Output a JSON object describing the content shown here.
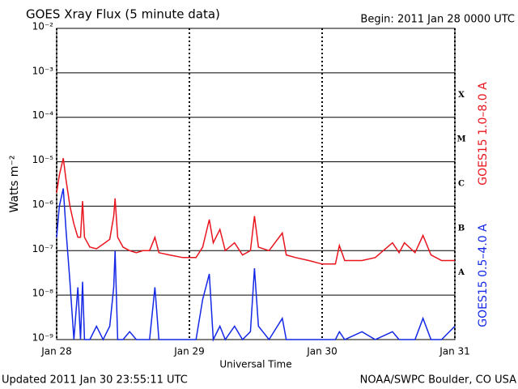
{
  "chart_data": {
    "type": "line",
    "title": "GOES Xray Flux (5 minute data)",
    "subtitle": "Begin:  2011 Jan 28 0000 UTC",
    "x_label": "Universal Time",
    "y_label": "Watts m⁻²",
    "footer_left": "Updated 2011 Jan 30 23:55:11 UTC",
    "footer_right": "NOAA/SWPC Boulder, CO USA",
    "flare_classes": [
      "A",
      "B",
      "C",
      "M",
      "X"
    ],
    "ylog": true,
    "grid": true,
    "xlim": [
      0,
      3
    ],
    "xticks": [
      {
        "value": 0,
        "label": "Jan 28"
      },
      {
        "value": 1,
        "label": "Jan 29"
      },
      {
        "value": 2,
        "label": "Jan 30"
      },
      {
        "value": 3,
        "label": "Jan 31"
      }
    ],
    "ylim": [
      1e-09,
      0.01
    ],
    "yticks": [
      {
        "value": 1e-09,
        "label": "10⁻⁹"
      },
      {
        "value": 1e-08,
        "label": "10⁻⁸"
      },
      {
        "value": 1e-07,
        "label": "10⁻⁷"
      },
      {
        "value": 1e-06,
        "label": "10⁻⁶"
      },
      {
        "value": 1e-05,
        "label": "10⁻⁵"
      },
      {
        "value": 0.0001,
        "label": "10⁻⁴"
      },
      {
        "value": 0.001,
        "label": "10⁻³"
      },
      {
        "value": 0.01,
        "label": "10⁻²"
      }
    ],
    "x": [
      0,
      0.02,
      0.05,
      0.07,
      0.1,
      0.13,
      0.16,
      0.18,
      0.195,
      0.21,
      0.25,
      0.3,
      0.35,
      0.4,
      0.43,
      0.44,
      0.46,
      0.5,
      0.55,
      0.6,
      0.65,
      0.7,
      0.74,
      0.77,
      0.85,
      0.95,
      1.05,
      1.1,
      1.15,
      1.18,
      1.23,
      1.27,
      1.34,
      1.4,
      1.46,
      1.49,
      1.52,
      1.6,
      1.7,
      1.73,
      1.8,
      1.9,
      2.0,
      2.1,
      2.13,
      2.17,
      2.3,
      2.4,
      2.53,
      2.58,
      2.62,
      2.7,
      2.76,
      2.82,
      2.9,
      3.0
    ],
    "series": [
      {
        "name": "GOES15 1.0–8.0 A",
        "color": "#e8141e",
        "values": [
          2e-06,
          5e-06,
          1.2e-05,
          4e-06,
          1e-06,
          4e-07,
          2e-07,
          2e-07,
          1.3e-06,
          2e-07,
          1.2e-07,
          1.1e-07,
          1.4e-07,
          1.8e-07,
          6e-07,
          1.5e-06,
          2e-07,
          1.2e-07,
          1e-07,
          9e-08,
          1e-07,
          1e-07,
          2e-07,
          9e-08,
          8e-08,
          7e-08,
          7e-08,
          1.2e-07,
          5e-07,
          1.5e-07,
          3e-07,
          1e-07,
          1.5e-07,
          8e-08,
          1e-07,
          6e-07,
          1.2e-07,
          1e-07,
          2.5e-07,
          8e-08,
          7e-08,
          6e-08,
          5e-08,
          5e-08,
          1.3e-07,
          6e-08,
          6e-08,
          7e-08,
          1.5e-07,
          9e-08,
          1.5e-07,
          9e-08,
          2.2e-07,
          8e-08,
          6e-08,
          6e-08
        ]
      },
      {
        "name": "GOES15 0.5–4.0 A",
        "color": "#1428e6",
        "values": [
          2e-07,
          1e-06,
          2.5e-06,
          3e-07,
          2e-08,
          1e-09,
          1.5e-08,
          1e-09,
          2e-08,
          1e-09,
          1e-09,
          2e-09,
          1e-09,
          2e-09,
          1.5e-08,
          1e-07,
          1e-09,
          1e-09,
          1.5e-09,
          1e-09,
          1e-09,
          1e-09,
          1.5e-08,
          1e-09,
          1e-09,
          1e-09,
          1e-09,
          8e-09,
          3e-08,
          1e-09,
          2e-09,
          1e-09,
          2e-09,
          1e-09,
          1.5e-09,
          4e-08,
          2e-09,
          1e-09,
          3e-09,
          1e-09,
          1e-09,
          1e-09,
          1e-09,
          1e-09,
          1.5e-09,
          1e-09,
          1.5e-09,
          1e-09,
          1.5e-09,
          1e-09,
          1e-09,
          1e-09,
          3e-09,
          1e-09,
          1e-09,
          2e-09
        ]
      }
    ]
  }
}
